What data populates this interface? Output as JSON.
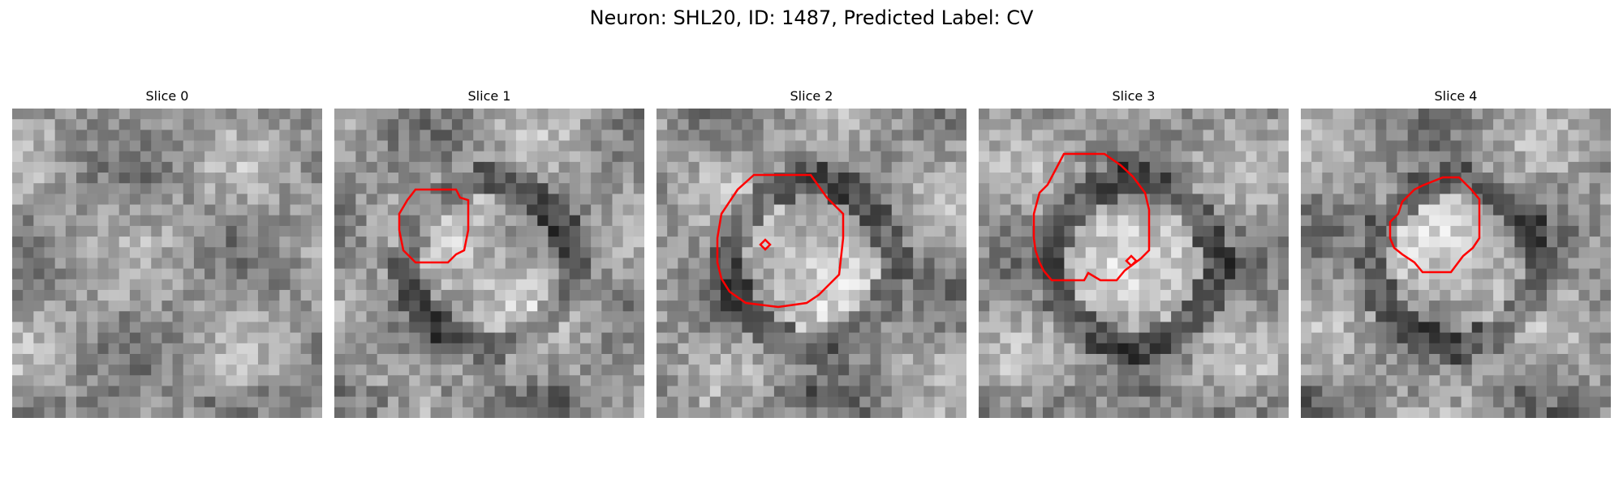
{
  "figure": {
    "title": "Neuron: SHL20, ID: 1487, Predicted Label: CV"
  },
  "panels": [
    {
      "title": "Slice 0",
      "seed": 11,
      "contours": []
    },
    {
      "title": "Slice 1",
      "seed": 23,
      "contours": [
        [
          [
            140,
            100
          ],
          [
            150,
            100
          ],
          [
            155,
            110
          ],
          [
            165,
            113
          ],
          [
            165,
            150
          ],
          [
            160,
            175
          ],
          [
            150,
            180
          ],
          [
            140,
            190
          ],
          [
            100,
            190
          ],
          [
            90,
            180
          ],
          [
            85,
            175
          ],
          [
            80,
            150
          ],
          [
            80,
            130
          ],
          [
            90,
            113
          ],
          [
            100,
            100
          ]
        ]
      ]
    },
    {
      "title": "Slice 2",
      "seed": 37,
      "contours": [
        [
          [
            150,
            82
          ],
          [
            190,
            82
          ],
          [
            200,
            96
          ],
          [
            210,
            110
          ],
          [
            220,
            120
          ],
          [
            230,
            130
          ],
          [
            230,
            160
          ],
          [
            225,
            205
          ],
          [
            215,
            215
          ],
          [
            200,
            230
          ],
          [
            185,
            240
          ],
          [
            150,
            245
          ],
          [
            110,
            240
          ],
          [
            90,
            226
          ],
          [
            80,
            210
          ],
          [
            75,
            190
          ],
          [
            75,
            160
          ],
          [
            80,
            130
          ],
          [
            100,
            100
          ],
          [
            120,
            82
          ]
        ],
        [
          [
            128,
            168
          ],
          [
            134,
            162
          ],
          [
            140,
            168
          ],
          [
            134,
            174
          ]
        ]
      ]
    },
    {
      "title": "Slice 3",
      "seed": 41,
      "contours": [
        [
          [
            105,
            56
          ],
          [
            155,
            56
          ],
          [
            175,
            70
          ],
          [
            190,
            84
          ],
          [
            205,
            104
          ],
          [
            210,
            125
          ],
          [
            210,
            175
          ],
          [
            200,
            185
          ],
          [
            180,
            200
          ],
          [
            170,
            212
          ],
          [
            150,
            212
          ],
          [
            135,
            203
          ],
          [
            130,
            212
          ],
          [
            90,
            212
          ],
          [
            80,
            200
          ],
          [
            75,
            190
          ],
          [
            70,
            175
          ],
          [
            68,
            160
          ],
          [
            68,
            130
          ],
          [
            75,
            104
          ],
          [
            85,
            94
          ]
        ],
        [
          [
            182,
            188
          ],
          [
            188,
            182
          ],
          [
            194,
            188
          ],
          [
            188,
            194
          ]
        ]
      ]
    },
    {
      "title": "Slice 4",
      "seed": 53,
      "contours": [
        [
          [
            175,
            85
          ],
          [
            195,
            85
          ],
          [
            210,
            100
          ],
          [
            220,
            112
          ],
          [
            220,
            160
          ],
          [
            212,
            172
          ],
          [
            200,
            182
          ],
          [
            185,
            202
          ],
          [
            150,
            202
          ],
          [
            140,
            190
          ],
          [
            125,
            180
          ],
          [
            115,
            172
          ],
          [
            110,
            160
          ],
          [
            110,
            140
          ],
          [
            120,
            130
          ],
          [
            125,
            115
          ],
          [
            140,
            100
          ],
          [
            150,
            95
          ]
        ]
      ]
    }
  ]
}
